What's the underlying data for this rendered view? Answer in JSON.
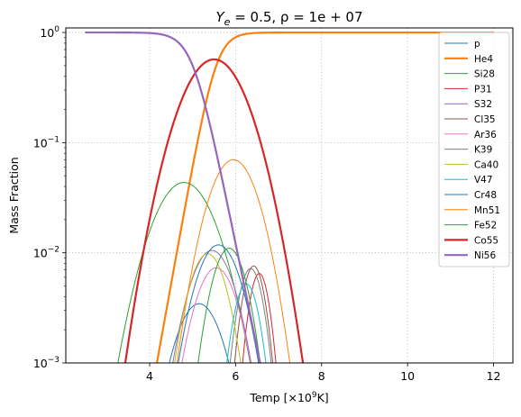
{
  "chart_data": {
    "type": "line",
    "title": "Y_e = 0.5, ρ = 1e+07",
    "title_parts": {
      "y": "Y",
      "e": "e",
      "rest": " = 0.5, ρ = 1e + 07"
    },
    "xlabel": "Temp [×10⁹K]",
    "xlabel_parts": {
      "pre": "Temp [×10",
      "sup": "9",
      "post": "K]"
    },
    "ylabel": "Mass Fraction",
    "xlim": [
      2.05,
      12.45
    ],
    "ylim": [
      0.001,
      1.1
    ],
    "yscale": "log",
    "grid": true,
    "legend_position": "top-right",
    "x_ticks": [
      {
        "value": 4,
        "label": "4"
      },
      {
        "value": 6,
        "label": "6"
      },
      {
        "value": 8,
        "label": "8"
      },
      {
        "value": 10,
        "label": "10"
      },
      {
        "value": 12,
        "label": "12"
      }
    ],
    "y_ticks": [
      {
        "value": 0.001,
        "base": "10",
        "exp": "−3"
      },
      {
        "value": 0.01,
        "base": "10",
        "exp": "−2"
      },
      {
        "value": 0.1,
        "base": "10",
        "exp": "−1"
      },
      {
        "value": 1,
        "base": "10",
        "exp": "0"
      }
    ],
    "x_range": [
      2.5,
      12.0
    ],
    "series": [
      {
        "name": "p",
        "color": "#1f77b4",
        "width": 1,
        "model": "gauss",
        "peak": 0.00345,
        "center": 5.15,
        "sigma": 0.44
      },
      {
        "name": "He4",
        "color": "#ff7f0e",
        "width": 2.2,
        "model": "sigmoid",
        "max": 1.0,
        "mid": 5.55,
        "k": 5.0
      },
      {
        "name": "Si28",
        "color": "#2ca02c",
        "width": 1,
        "model": "gauss",
        "peak": 0.0435,
        "center": 4.8,
        "sigma": 0.56
      },
      {
        "name": "P31",
        "color": "#d62728",
        "width": 1,
        "model": "gauss",
        "peak": 0.0065,
        "center": 6.55,
        "sigma": 0.2
      },
      {
        "name": "S32",
        "color": "#9467bd",
        "width": 1,
        "model": "gauss",
        "peak": 0.0105,
        "center": 5.45,
        "sigma": 0.42
      },
      {
        "name": "Cl35",
        "color": "#8c564b",
        "width": 1,
        "model": "gauss",
        "peak": 0.0076,
        "center": 6.42,
        "sigma": 0.22
      },
      {
        "name": "Ar36",
        "color": "#e377c2",
        "width": 1,
        "model": "gauss",
        "peak": 0.0073,
        "center": 5.55,
        "sigma": 0.4
      },
      {
        "name": "K39",
        "color": "#7f7f7f",
        "width": 1,
        "model": "gauss",
        "peak": 0.0072,
        "center": 6.35,
        "sigma": 0.24
      },
      {
        "name": "Ca40",
        "color": "#bcbd22",
        "width": 1,
        "model": "gauss",
        "peak": 0.0098,
        "center": 5.35,
        "sigma": 0.36
      },
      {
        "name": "V47",
        "color": "#17becf",
        "width": 1,
        "model": "gauss",
        "peak": 0.0052,
        "center": 6.25,
        "sigma": 0.25
      },
      {
        "name": "Cr48",
        "color": "#1f77b4",
        "width": 1,
        "model": "gauss",
        "peak": 0.0118,
        "center": 5.6,
        "sigma": 0.42
      },
      {
        "name": "Mn51",
        "color": "#ff7f0e",
        "width": 1,
        "model": "gauss",
        "peak": 0.07,
        "center": 5.95,
        "sigma": 0.45
      },
      {
        "name": "Fe52",
        "color": "#2ca02c",
        "width": 1,
        "model": "gauss",
        "peak": 0.011,
        "center": 5.85,
        "sigma": 0.33
      },
      {
        "name": "Co55",
        "color": "#d62728",
        "width": 2.2,
        "model": "gauss",
        "peak": 0.57,
        "center": 5.5,
        "sigma": 0.58
      },
      {
        "name": "Ni56",
        "color": "#9467bd",
        "width": 2.2,
        "model": "rsigmoid",
        "max": 1.0,
        "mid": 5.0,
        "k": 4.4
      }
    ]
  }
}
